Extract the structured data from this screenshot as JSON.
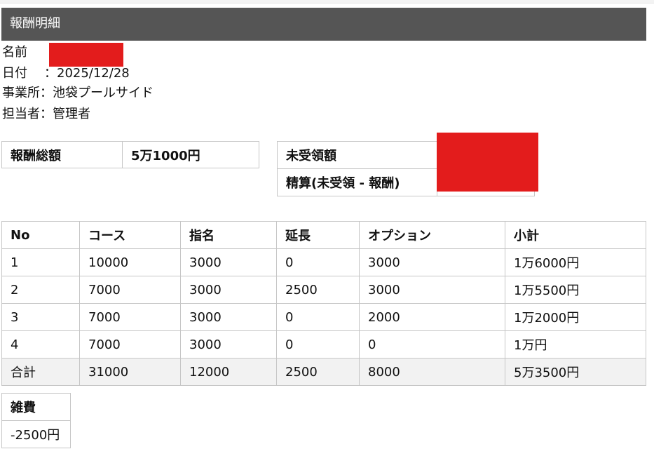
{
  "page": {
    "title": "報酬明細",
    "info": {
      "name_label": "名前",
      "date_label": "日付",
      "date_value": "：2025/12/28",
      "office_label": "事業所",
      "office_value": "：池袋プールサイド",
      "staff_label": "担当者",
      "staff_value": "：管理者"
    }
  },
  "summary": {
    "total_label": "報酬総額",
    "total_value": "5万1000円",
    "unreceived_label": "未受領額",
    "settlement_label": "精算(未受領 - 報酬)"
  },
  "breakdown": {
    "headers": [
      "No",
      "コース",
      "指名",
      "延長",
      "オプション",
      "小計"
    ],
    "rows": [
      [
        "1",
        "10000",
        "3000",
        "0",
        "3000",
        "1万6000円"
      ],
      [
        "2",
        "7000",
        "3000",
        "2500",
        "3000",
        "1万5500円"
      ],
      [
        "3",
        "7000",
        "3000",
        "0",
        "2000",
        "1万2000円"
      ],
      [
        "4",
        "7000",
        "3000",
        "0",
        "0",
        "1万円"
      ]
    ],
    "total_row": [
      "合計",
      "31000",
      "12000",
      "2500",
      "8000",
      "5万3500円"
    ]
  },
  "misc": {
    "label": "雑費",
    "value": "-2500円"
  },
  "colors": {
    "header_bg": "#555555",
    "redaction": "#e31c1c",
    "total_row_bg": "#f2f2f2",
    "border": "#c6c6c6"
  }
}
